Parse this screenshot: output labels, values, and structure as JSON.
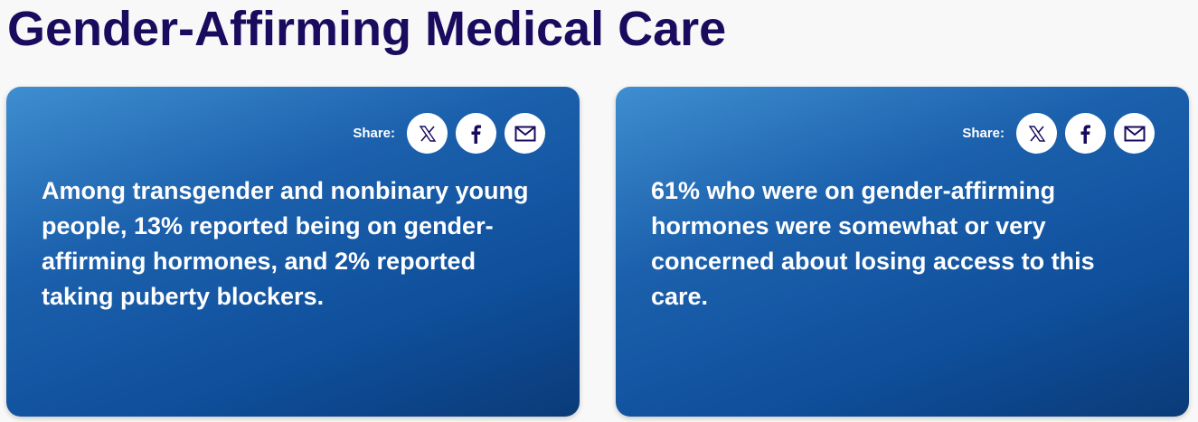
{
  "title": "Gender-Affirming Medical Care",
  "cards": [
    {
      "share_label": "Share:",
      "text": "Among transgender and nonbinary young people, 13% reported being on gender-affirming hormones, and 2% reported taking puberty blockers."
    },
    {
      "share_label": "Share:",
      "text": "61% who were on gender-affirming hormones were somewhat or very concerned about losing access to this care."
    }
  ]
}
